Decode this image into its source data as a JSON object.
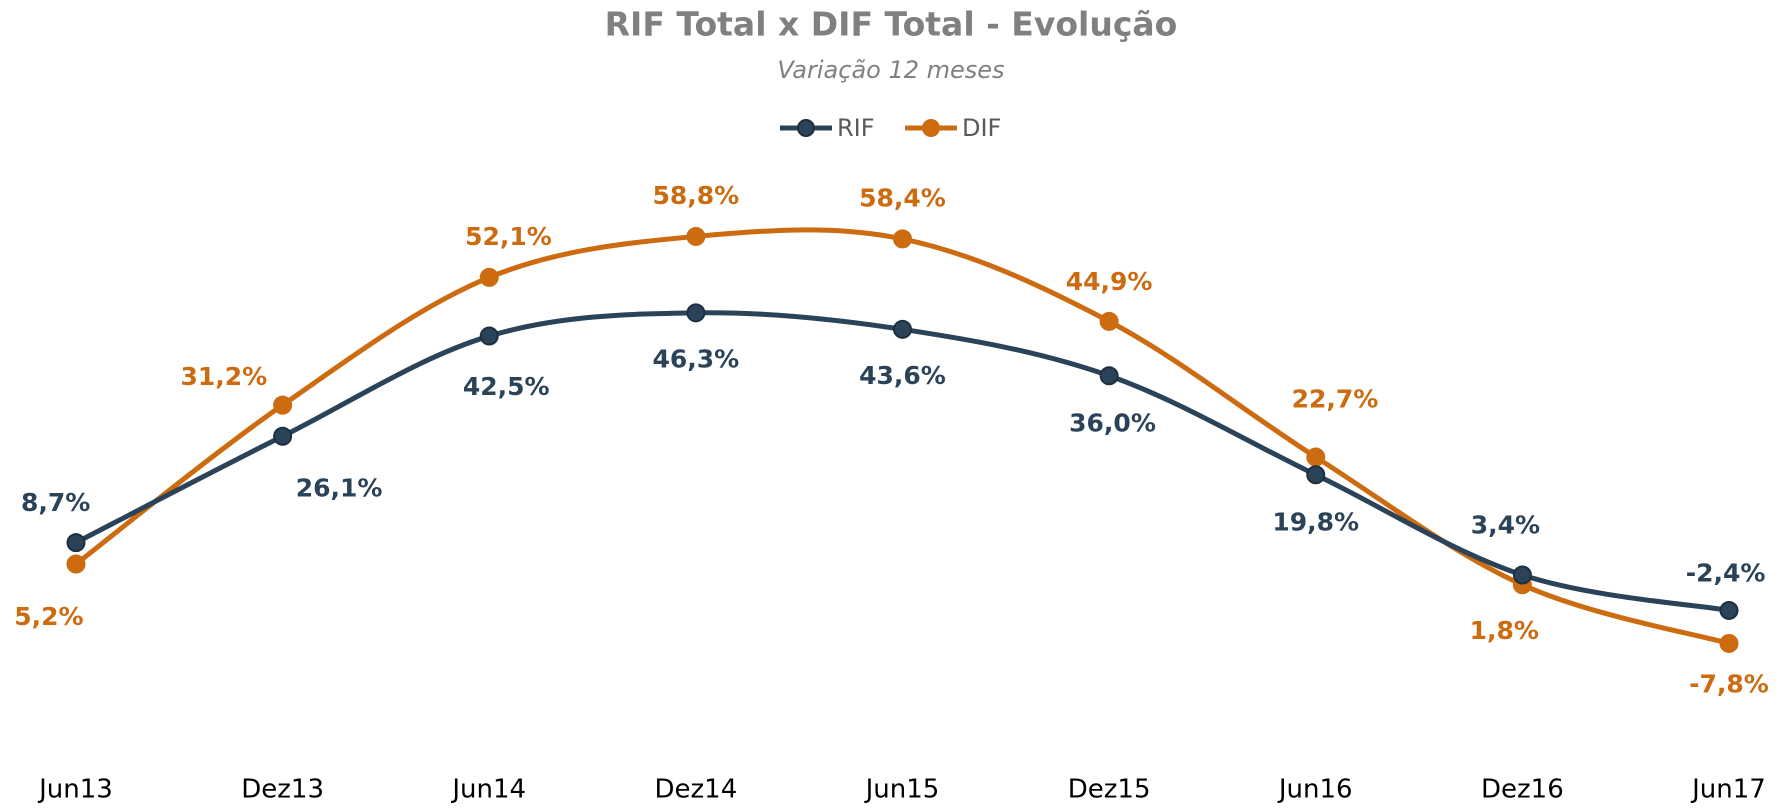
{
  "chart_data": {
    "type": "line",
    "title": "RIF Total x DIF Total - Evolução",
    "subtitle": "Variação 12 meses",
    "categories": [
      "Jun13",
      "Dez13",
      "Jun14",
      "Dez14",
      "Jun15",
      "Dez15",
      "Jun16",
      "Dez16",
      "Jun17"
    ],
    "series": [
      {
        "name": "RIF",
        "color": "#2b4358",
        "values": [
          8.7,
          26.1,
          42.5,
          46.3,
          43.6,
          36.0,
          19.8,
          3.4,
          -2.4
        ],
        "value_labels": [
          "8,7%",
          "26,1%",
          "42,5%",
          "46,3%",
          "43,6%",
          "36,0%",
          "19,8%",
          "3,4%",
          "-2,4%"
        ]
      },
      {
        "name": "DIF",
        "color": "#cc6b10",
        "values": [
          5.2,
          31.2,
          52.1,
          58.8,
          58.4,
          44.9,
          22.7,
          1.8,
          -7.8
        ],
        "value_labels": [
          "5,2%",
          "31,2%",
          "52,1%",
          "58,8%",
          "58,4%",
          "44,9%",
          "22,7%",
          "1,8%",
          "-7,8%"
        ]
      }
    ],
    "ylim": [
      -20,
      70
    ],
    "legend": "top"
  }
}
